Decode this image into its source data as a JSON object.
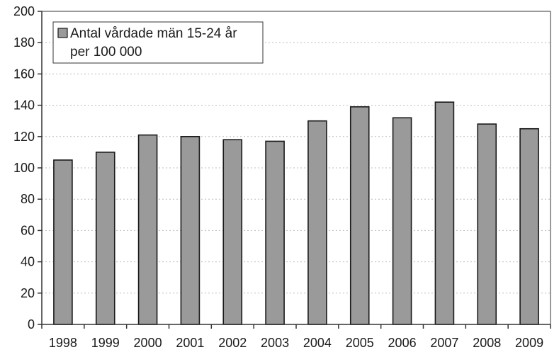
{
  "chart_data": {
    "type": "bar",
    "categories": [
      "1998",
      "1999",
      "2000",
      "2001",
      "2002",
      "2003",
      "2004",
      "2005",
      "2006",
      "2007",
      "2008",
      "2009"
    ],
    "series": [
      {
        "name": "Antal vårdade män 15-24 år per 100 000",
        "values": [
          105,
          110,
          121,
          120,
          118,
          117,
          130,
          139,
          132,
          142,
          128,
          125
        ]
      }
    ],
    "ylim": [
      0,
      200
    ],
    "yticks": [
      0,
      20,
      40,
      60,
      80,
      100,
      120,
      140,
      160,
      180,
      200
    ],
    "grid": true,
    "legend": {
      "placement": "top-left",
      "lines": [
        "Antal vårdade män 15-24 år",
        "per 100 000"
      ]
    },
    "colors": {
      "bar_fill": "#9a9a9a",
      "bar_stroke": "#1a1a1a",
      "axis": "#333333",
      "grid": "#bdbdbd",
      "text": "#1a1a1a"
    }
  }
}
